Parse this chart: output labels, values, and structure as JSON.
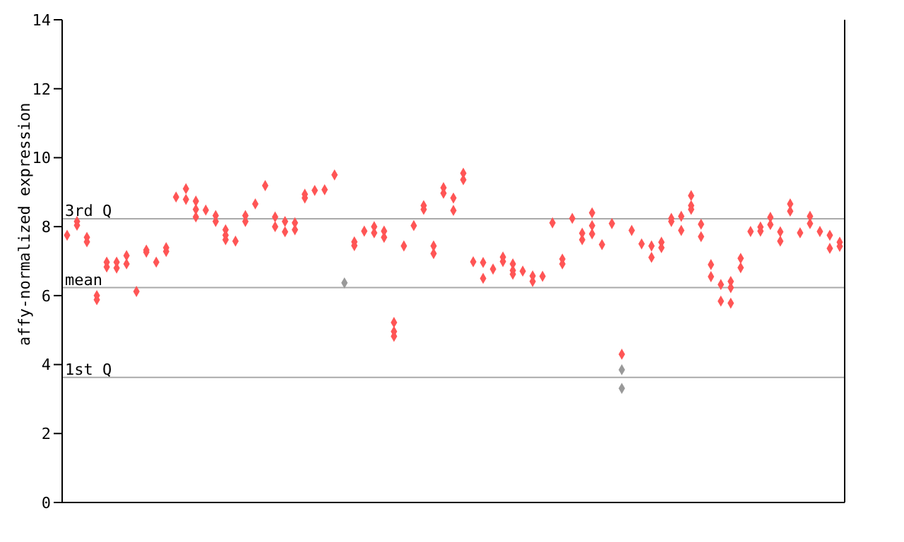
{
  "chart_data": {
    "type": "scatter",
    "ylabel": "affy-normalized expression",
    "categories": [
      null,
      null,
      null,
      null,
      null,
      null,
      null,
      null,
      null,
      null,
      null,
      null,
      null,
      null,
      null,
      null,
      null,
      null,
      null,
      null,
      null,
      null,
      null,
      null,
      null,
      null,
      null,
      null,
      null,
      null,
      null,
      null,
      null,
      null,
      null,
      null,
      null,
      null,
      null,
      null,
      null,
      null,
      null,
      null,
      null,
      null,
      null,
      null,
      null,
      null,
      null,
      null,
      null,
      null,
      null,
      null,
      null,
      null,
      null,
      null,
      null,
      null,
      null,
      null,
      null,
      null,
      null,
      null,
      null,
      null,
      null,
      null,
      null,
      null,
      null,
      null,
      null,
      null,
      null
    ],
    "ylim": [
      0,
      14
    ],
    "yticks": [
      0,
      2,
      4,
      6,
      8,
      10,
      12,
      14
    ],
    "tick_labels": "y",
    "marker": "diamond",
    "ref_lines": [
      {
        "axis": "y",
        "value": 8.23,
        "label": "3rd Q",
        "color": "#aaaaaa"
      },
      {
        "axis": "y",
        "value": 6.23,
        "label": "mean",
        "color": "#aaaaaa"
      },
      {
        "axis": "y",
        "value": 3.63,
        "label": "1st Q",
        "color": "#aaaaaa"
      }
    ],
    "series": [
      {
        "color": "#ff5555",
        "values": [
          7.75,
          8.15,
          7.69,
          6.0,
          6.83,
          6.8,
          7.16,
          6.12,
          7.32,
          6.97,
          7.28,
          8.86,
          9.1,
          8.74,
          8.48,
          8.32,
          7.91,
          7.58,
          8.32,
          8.66,
          9.19,
          8.28,
          8.15,
          8.11,
          8.94,
          9.05,
          9.07,
          9.5,
          null,
          7.56,
          7.87,
          8.0,
          7.87,
          5.22,
          7.44,
          8.03,
          8.61,
          7.44,
          9.13,
          8.83,
          9.55,
          6.98,
          6.96,
          6.77,
          7.12,
          6.92,
          6.71,
          6.57,
          6.56,
          8.11,
          7.06,
          8.24,
          7.81,
          8.4,
          7.48,
          8.09,
          4.3,
          7.89,
          7.5,
          7.11,
          7.55,
          8.24,
          8.3,
          8.9,
          8.07,
          6.9,
          6.32,
          6.41,
          7.08,
          7.86,
          7.99,
          8.27,
          7.85,
          8.66,
          7.82,
          8.3,
          7.86,
          7.75,
          7.55
        ]
      },
      {
        "color": "#ff5555",
        "values": [
          null,
          8.04,
          7.56,
          5.88,
          6.97,
          6.97,
          6.92,
          null,
          7.26,
          null,
          7.39,
          null,
          8.79,
          8.5,
          null,
          8.15,
          7.75,
          null,
          8.15,
          null,
          null,
          8.0,
          7.85,
          7.91,
          8.83,
          null,
          null,
          null,
          null,
          7.45,
          null,
          7.82,
          7.69,
          4.96,
          null,
          null,
          8.5,
          7.22,
          8.97,
          8.47,
          9.36,
          null,
          6.5,
          null,
          6.99,
          6.73,
          null,
          6.41,
          null,
          null,
          6.92,
          null,
          7.62,
          8.03,
          null,
          null,
          null,
          null,
          null,
          7.44,
          7.39,
          8.15,
          7.89,
          8.61,
          7.71,
          6.55,
          5.84,
          6.23,
          6.81,
          null,
          7.87,
          8.06,
          7.58,
          8.45,
          null,
          8.09,
          null,
          7.37,
          7.43
        ]
      },
      {
        "color": "#ff5555",
        "values": [
          null,
          null,
          null,
          null,
          null,
          null,
          null,
          null,
          null,
          null,
          null,
          null,
          null,
          8.28,
          null,
          null,
          7.62,
          null,
          null,
          null,
          null,
          null,
          null,
          null,
          null,
          null,
          null,
          null,
          null,
          null,
          null,
          null,
          null,
          4.82,
          null,
          null,
          null,
          null,
          null,
          null,
          null,
          null,
          null,
          null,
          null,
          6.62,
          null,
          null,
          null,
          null,
          null,
          null,
          null,
          7.79,
          null,
          null,
          null,
          null,
          null,
          null,
          null,
          null,
          null,
          8.5,
          null,
          null,
          null,
          5.78,
          null,
          null,
          null,
          null,
          null,
          null,
          null,
          null,
          null,
          null,
          null
        ]
      },
      {
        "color": "#999999",
        "values": [
          null,
          null,
          null,
          null,
          null,
          null,
          null,
          null,
          null,
          null,
          null,
          null,
          null,
          null,
          null,
          null,
          null,
          null,
          null,
          null,
          null,
          null,
          null,
          null,
          null,
          null,
          null,
          null,
          6.37,
          null,
          null,
          null,
          null,
          null,
          null,
          null,
          null,
          null,
          null,
          null,
          null,
          null,
          null,
          null,
          null,
          null,
          null,
          null,
          null,
          null,
          null,
          null,
          null,
          null,
          null,
          null,
          3.85,
          null,
          null,
          null,
          null,
          null,
          null,
          null,
          null,
          null,
          null,
          null,
          null,
          null,
          null,
          null,
          null,
          null,
          null,
          null,
          null,
          null,
          null
        ]
      },
      {
        "color": "#999999",
        "values": [
          null,
          null,
          null,
          null,
          null,
          null,
          null,
          null,
          null,
          null,
          null,
          null,
          null,
          null,
          null,
          null,
          null,
          null,
          null,
          null,
          null,
          null,
          null,
          null,
          null,
          null,
          null,
          null,
          null,
          null,
          null,
          null,
          null,
          null,
          null,
          null,
          null,
          null,
          null,
          null,
          null,
          null,
          null,
          null,
          null,
          null,
          null,
          null,
          null,
          null,
          null,
          null,
          null,
          null,
          null,
          null,
          3.31,
          null,
          null,
          null,
          null,
          null,
          null,
          null,
          null,
          null,
          null,
          null,
          null,
          null,
          null,
          null,
          null,
          null,
          null,
          null,
          null,
          null,
          null
        ]
      }
    ]
  }
}
